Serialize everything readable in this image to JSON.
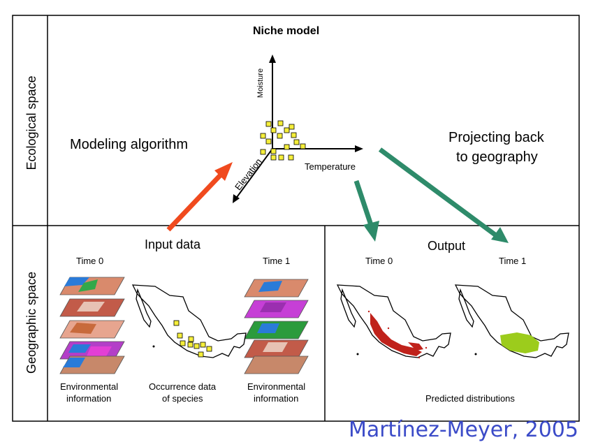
{
  "side_labels": {
    "ecological": "Ecological space",
    "geographic": "Geographic space"
  },
  "niche": {
    "title": "Niche model",
    "axis_moisture": "Moisture",
    "axis_temperature": "Temperature",
    "axis_elevation": "Elevation"
  },
  "modeling_label": "Modeling algorithm",
  "projecting_label": {
    "line1": "Projecting back",
    "line2": "to geography"
  },
  "input": {
    "title": "Input data",
    "time0": "Time 0",
    "time1": "Time 1",
    "env_left": {
      "line1": "Environmental",
      "line2": "information"
    },
    "occurrence": {
      "line1": "Occurrence data",
      "line2": "of species"
    },
    "env_right": {
      "line1": "Environmental",
      "line2": "information"
    }
  },
  "output": {
    "title": "Output",
    "time0": "Time 0",
    "time1": "Time 1",
    "caption": "Predicted distributions"
  },
  "citation": "Martínez-Meyer, 2005",
  "colors": {
    "arrow_red": "#f04a1e",
    "arrow_green": "#2e8b6a",
    "points_yellow": "#f5ee3a",
    "prediction_red": "#c0221b",
    "prediction_green": "#9ccc1c",
    "citation_blue": "#3b4bc8"
  }
}
